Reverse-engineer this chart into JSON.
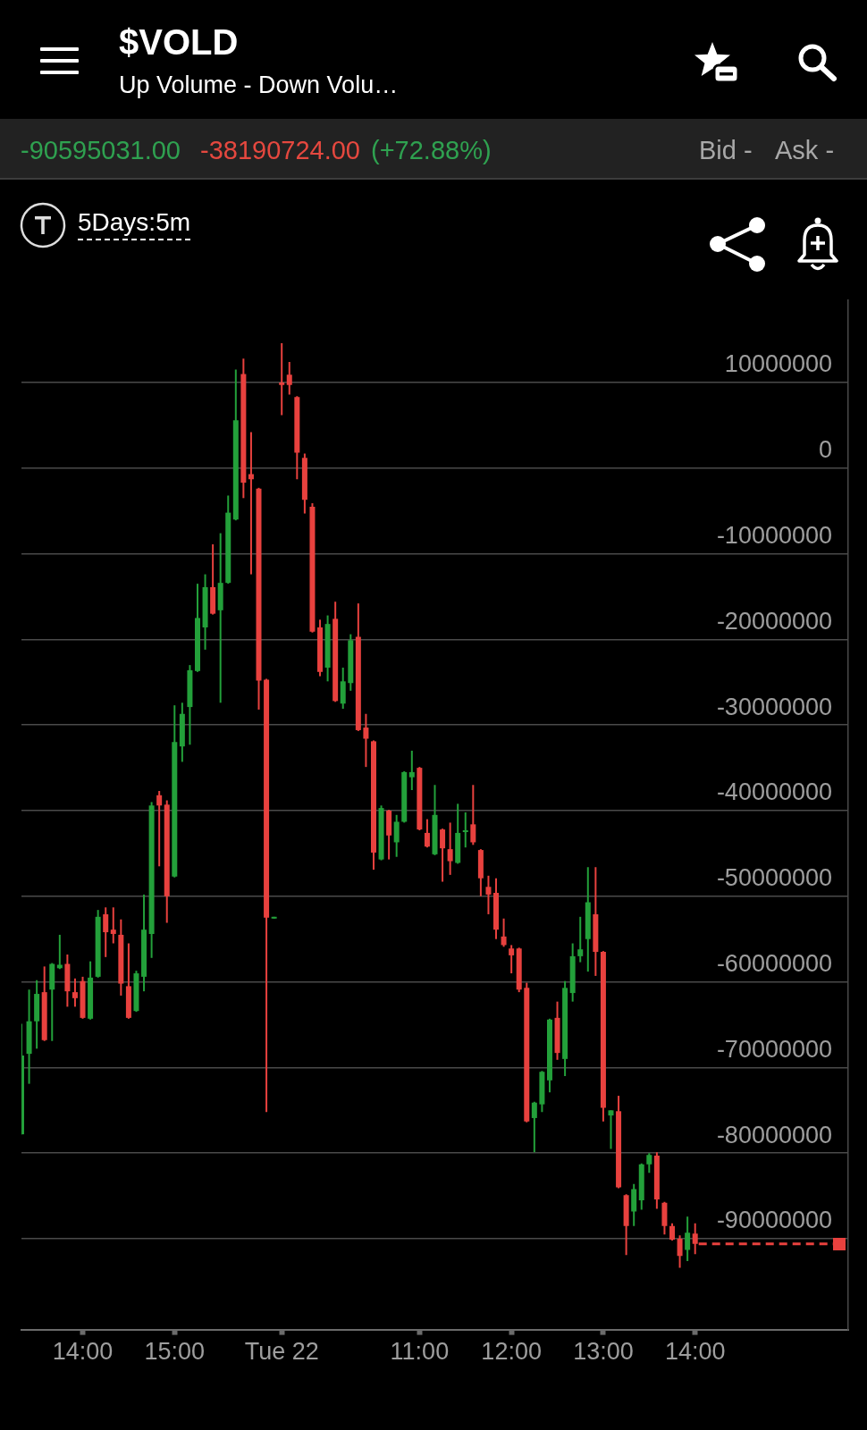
{
  "chart_data": {
    "type": "candlestick",
    "title": "$VOLD",
    "subtitle": "Up Volume - Down Volu…",
    "annotations": [
      "-90595031.00",
      "-38190724.00",
      "(+72.88%)",
      "Bid -",
      "Ask -",
      "5Days:5m"
    ],
    "categories": [
      null,
      null,
      null,
      null,
      null,
      null,
      null,
      null,
      "14:00",
      null,
      null,
      null,
      null,
      null,
      null,
      null,
      null,
      null,
      null,
      null,
      "15:00",
      null,
      null,
      null,
      null,
      null,
      null,
      null,
      null,
      null,
      null,
      null,
      null,
      null,
      "Tue 22",
      null,
      null,
      null,
      null,
      null,
      null,
      null,
      null,
      null,
      null,
      null,
      null,
      null,
      null,
      null,
      null,
      null,
      "11:00",
      null,
      null,
      null,
      null,
      null,
      null,
      null,
      null,
      null,
      null,
      null,
      "12:00",
      null,
      null,
      null,
      null,
      null,
      null,
      null,
      null,
      null,
      null,
      null,
      "13:00",
      null,
      null,
      null,
      null,
      null,
      null,
      null,
      null,
      null,
      null,
      null,
      "14:00",
      null,
      null,
      null,
      null,
      null,
      null,
      null,
      null,
      null,
      null,
      null,
      null,
      null,
      null,
      null,
      null,
      null,
      null,
      null,
      null
    ],
    "ohlc": [
      [
        -77800000,
        -64900000,
        -77800000,
        -68600000
      ],
      [
        -68400000,
        -60900000,
        -71900000,
        -64600000
      ],
      [
        -64600000,
        -59800000,
        -67800000,
        -61400000
      ],
      [
        -61200000,
        -58200000,
        -66900000,
        -66800000
      ],
      [
        -60900000,
        -57800000,
        -66900000,
        -57900000
      ],
      [
        -58400000,
        -54500000,
        -58500000,
        -58000000
      ],
      [
        -57900000,
        -56800000,
        -62900000,
        -61100000
      ],
      [
        -61200000,
        -59600000,
        -62900000,
        -61900000
      ],
      [
        -59900000,
        -59400000,
        -64300000,
        -64200000
      ],
      [
        -64300000,
        -57600000,
        -64400000,
        -59500000
      ],
      [
        -59400000,
        -51600000,
        -59500000,
        -52400000
      ],
      [
        -52100000,
        -51300000,
        -57100000,
        -54200000
      ],
      [
        -53900000,
        -51300000,
        -55500000,
        -54400000
      ],
      [
        -54500000,
        -52700000,
        -61600000,
        -60200000
      ],
      [
        -60500000,
        -55500000,
        -64300000,
        -64200000
      ],
      [
        -63400000,
        -58700000,
        -63500000,
        -59000000
      ],
      [
        -59400000,
        -49800000,
        -61100000,
        -53900000
      ],
      [
        -54400000,
        -39000000,
        -57200000,
        -39400000
      ],
      [
        -38200000,
        -37700000,
        -46500000,
        -39400000
      ],
      [
        -39300000,
        -38800000,
        -53100000,
        -50000000
      ],
      [
        -47700000,
        -27700000,
        -47800000,
        -32000000
      ],
      [
        -32500000,
        -27400000,
        -34300000,
        -28700000
      ],
      [
        -27900000,
        -23000000,
        -32300000,
        -23600000
      ],
      [
        -23700000,
        -13500000,
        -23800000,
        -17500000
      ],
      [
        -18600000,
        -12400000,
        -21200000,
        -13900000
      ],
      [
        -13900000,
        -8900000,
        -17100000,
        -17000000
      ],
      [
        -16600000,
        -7600000,
        -27400000,
        -13400000
      ],
      [
        -13400000,
        -3200000,
        -13500000,
        -5200000
      ],
      [
        -6000000,
        11500000,
        -6100000,
        5600000
      ],
      [
        11000000,
        12800000,
        -3500000,
        -1700000
      ],
      [
        -700000,
        4200000,
        -12400000,
        -1300000
      ],
      [
        -2400000,
        -2300000,
        -28200000,
        -24800000
      ],
      [
        -24700000,
        -24600000,
        -75200000,
        -52500000
      ],
      [
        -52600000,
        -52400000,
        -52600000,
        -52400000
      ],
      [
        10000000,
        14600000,
        6200000,
        9700000
      ],
      [
        10900000,
        12400000,
        8600000,
        9700000
      ],
      [
        8300000,
        8400000,
        -1300000,
        1800000
      ],
      [
        1200000,
        1700000,
        -5300000,
        -3700000
      ],
      [
        -4500000,
        -4100000,
        -19200000,
        -19100000
      ],
      [
        -18600000,
        -17700000,
        -24300000,
        -23800000
      ],
      [
        -23300000,
        -17200000,
        -24900000,
        -18200000
      ],
      [
        -17600000,
        -15600000,
        -27300000,
        -27200000
      ],
      [
        -27500000,
        -23300000,
        -28100000,
        -24900000
      ],
      [
        -25100000,
        -19400000,
        -26000000,
        -20100000
      ],
      [
        -19700000,
        -15800000,
        -30700000,
        -30600000
      ],
      [
        -30300000,
        -28700000,
        -34900000,
        -31600000
      ],
      [
        -31900000,
        -31800000,
        -46900000,
        -44900000
      ],
      [
        -45700000,
        -39400000,
        -45800000,
        -39700000
      ],
      [
        -40000000,
        -39900000,
        -45700000,
        -42900000
      ],
      [
        -43700000,
        -40500000,
        -45400000,
        -41300000
      ],
      [
        -41300000,
        -35400000,
        -41400000,
        -35500000
      ],
      [
        -36100000,
        -33000000,
        -37600000,
        -35500000
      ],
      [
        -35000000,
        -34900000,
        -42300000,
        -42200000
      ],
      [
        -42600000,
        -41000000,
        -44300000,
        -44200000
      ],
      [
        -45100000,
        -37000000,
        -45200000,
        -40500000
      ],
      [
        -42200000,
        -42100000,
        -48300000,
        -44400000
      ],
      [
        -44500000,
        -41400000,
        -47500000,
        -45900000
      ],
      [
        -46100000,
        -39200000,
        -46200000,
        -42600000
      ],
      [
        -42500000,
        -40200000,
        -44300000,
        -42300000
      ],
      [
        -41600000,
        -37000000,
        -44000000,
        -43700000
      ],
      [
        -44600000,
        -44500000,
        -50000000,
        -47900000
      ],
      [
        -48900000,
        -47600000,
        -52100000,
        -49800000
      ],
      [
        -49600000,
        -47900000,
        -55000000,
        -53900000
      ],
      [
        -54700000,
        -52600000,
        -55900000,
        -55700000
      ],
      [
        -56100000,
        -55700000,
        -59000000,
        -56900000
      ],
      [
        -56100000,
        -56000000,
        -61200000,
        -60900000
      ],
      [
        -60700000,
        -60100000,
        -76400000,
        -76300000
      ],
      [
        -75900000,
        -74000000,
        -79900000,
        -74100000
      ],
      [
        -74300000,
        -70400000,
        -75200000,
        -70500000
      ],
      [
        -71500000,
        -64300000,
        -72900000,
        -64400000
      ],
      [
        -64200000,
        -62300000,
        -69100000,
        -68300000
      ],
      [
        -69000000,
        -59900000,
        -71000000,
        -60700000
      ],
      [
        -61300000,
        -55500000,
        -62300000,
        -57000000
      ],
      [
        -57000000,
        -52400000,
        -57700000,
        -56200000
      ],
      [
        -55000000,
        -46600000,
        -58800000,
        -50700000
      ],
      [
        -52100000,
        -46600000,
        -59300000,
        -56500000
      ],
      [
        -56500000,
        -56400000,
        -76300000,
        -74700000
      ],
      [
        -75600000,
        -75000000,
        -79500000,
        -75000000
      ],
      [
        -75100000,
        -73300000,
        -84100000,
        -84000000
      ],
      [
        -84900000,
        -84800000,
        -91900000,
        -88500000
      ],
      [
        -86800000,
        -83600000,
        -88500000,
        -84200000
      ],
      [
        -85500000,
        -81200000,
        -86600000,
        -81300000
      ],
      [
        -81300000,
        -80000000,
        -82300000,
        -80200000
      ],
      [
        -80300000,
        -79900000,
        -86500000,
        -85400000
      ],
      [
        -85800000,
        -85700000,
        -89500000,
        -88500000
      ],
      [
        -88500000,
        -88200000,
        -90200000,
        -90100000
      ],
      [
        -90000000,
        -89600000,
        -93400000,
        -92000000
      ],
      [
        -91300000,
        -87400000,
        -92600000,
        -89300000
      ],
      [
        -89400000,
        -88200000,
        -91800000,
        -90600000
      ],
      null,
      null,
      null,
      null,
      null,
      null,
      null,
      null,
      null,
      null,
      null,
      null,
      null,
      null,
      null,
      null,
      null,
      null,
      null,
      null
    ],
    "colors": [
      "#23a03a",
      "#23a03a",
      "#23a03a",
      "#e8413e",
      "#23a03a",
      "#23a03a",
      "#e8413e",
      "#e8413e",
      "#e8413e",
      "#23a03a",
      "#23a03a",
      "#e8413e",
      "#e8413e",
      "#e8413e",
      "#e8413e",
      "#23a03a",
      "#23a03a",
      "#23a03a",
      "#e8413e",
      "#e8413e",
      "#23a03a",
      "#23a03a",
      "#23a03a",
      "#23a03a",
      "#23a03a",
      "#e8413e",
      "#23a03a",
      "#23a03a",
      "#23a03a",
      "#e8413e",
      "#e8413e",
      "#e8413e",
      "#e8413e",
      "#23a03a",
      "#e8413e",
      "#e8413e",
      "#e8413e",
      "#e8413e",
      "#e8413e",
      "#e8413e",
      "#23a03a",
      "#e8413e",
      "#23a03a",
      "#23a03a",
      "#e8413e",
      "#e8413e",
      "#e8413e",
      "#23a03a",
      "#e8413e",
      "#23a03a",
      "#23a03a",
      "#23a03a",
      "#e8413e",
      "#e8413e",
      "#23a03a",
      "#e8413e",
      "#e8413e",
      "#23a03a",
      "#23a03a",
      "#e8413e",
      "#e8413e",
      "#e8413e",
      "#e8413e",
      "#e8413e",
      "#e8413e",
      "#e8413e",
      "#e8413e",
      "#23a03a",
      "#23a03a",
      "#23a03a",
      "#e8413e",
      "#23a03a",
      "#23a03a",
      "#23a03a",
      "#23a03a",
      "#e8413e",
      "#e8413e",
      "#23a03a",
      "#e8413e",
      "#e8413e",
      "#23a03a",
      "#23a03a",
      "#23a03a",
      "#e8413e",
      "#e8413e",
      "#e8413e",
      "#e8413e",
      "#23a03a",
      "#e8413e",
      null,
      null,
      null,
      null,
      null,
      null,
      null,
      null,
      null,
      null,
      null,
      null,
      null,
      null,
      null,
      null,
      null,
      null,
      null,
      null
    ],
    "ylim": [
      -100600000,
      19600000
    ],
    "yticks": [
      10000000,
      0,
      -10000000,
      -20000000,
      -30000000,
      -40000000,
      -50000000,
      -60000000,
      -70000000,
      -80000000,
      -90000000
    ],
    "grid": "y",
    "ref_lines": [
      {
        "axis": "y",
        "value": -90595031,
        "color": "#e8413e",
        "line_style": "dashed"
      }
    ]
  }
}
